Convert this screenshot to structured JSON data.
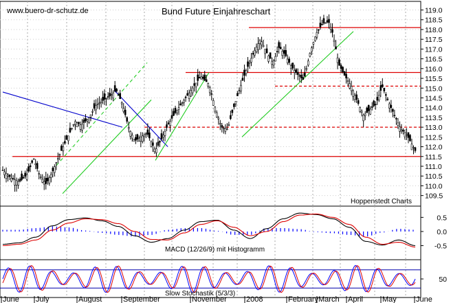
{
  "chart_data": [
    {
      "type": "candlestick",
      "title": "Bund Future Einjahreschart",
      "source_label": "www.buero-dr-schutz.de",
      "credit": "Hoppenstedt Charts",
      "ylim": [
        109.1,
        119.3
      ],
      "yticks": [
        119.0,
        118.5,
        118.0,
        117.5,
        117.0,
        116.5,
        116.0,
        115.5,
        115.0,
        114.5,
        114.0,
        113.5,
        113.0,
        112.5,
        112.0,
        111.5,
        111.0,
        110.5,
        110.0,
        109.5
      ],
      "yticklabels": [
        "119.0",
        "118.5",
        "118.0",
        "117.5",
        "117.0",
        "116.5",
        "116.0",
        "115.5",
        "115.0",
        "114.5",
        "114.0",
        "113.5",
        "113.0",
        "112.5",
        "112.0",
        "111.5",
        "111.0",
        "110.5",
        "110.0",
        "109.5"
      ],
      "price_path": [
        [
          0.0,
          110.8
        ],
        [
          0.02,
          110.4
        ],
        [
          0.04,
          110.2
        ],
        [
          0.06,
          110.6
        ],
        [
          0.075,
          111.4
        ],
        [
          0.09,
          110.5
        ],
        [
          0.105,
          110.1
        ],
        [
          0.12,
          110.7
        ],
        [
          0.14,
          111.7
        ],
        [
          0.16,
          112.6
        ],
        [
          0.175,
          113.3
        ],
        [
          0.19,
          113.1
        ],
        [
          0.21,
          113.5
        ],
        [
          0.225,
          114.1
        ],
        [
          0.245,
          114.4
        ],
        [
          0.26,
          114.6
        ],
        [
          0.275,
          114.9
        ],
        [
          0.29,
          114.2
        ],
        [
          0.305,
          113.0
        ],
        [
          0.32,
          112.3
        ],
        [
          0.335,
          112.5
        ],
        [
          0.35,
          112.7
        ],
        [
          0.37,
          111.8
        ],
        [
          0.385,
          112.4
        ],
        [
          0.4,
          113.1
        ],
        [
          0.42,
          113.8
        ],
        [
          0.44,
          114.4
        ],
        [
          0.46,
          115.0
        ],
        [
          0.48,
          115.6
        ],
        [
          0.5,
          115.2
        ],
        [
          0.515,
          114.0
        ],
        [
          0.53,
          113.0
        ],
        [
          0.545,
          112.9
        ],
        [
          0.56,
          114.0
        ],
        [
          0.575,
          115.0
        ],
        [
          0.59,
          115.9
        ],
        [
          0.61,
          116.9
        ],
        [
          0.625,
          117.5
        ],
        [
          0.64,
          116.8
        ],
        [
          0.655,
          116.3
        ],
        [
          0.67,
          117.1
        ],
        [
          0.685,
          116.7
        ],
        [
          0.7,
          116.1
        ],
        [
          0.715,
          115.7
        ],
        [
          0.73,
          115.4
        ],
        [
          0.745,
          116.8
        ],
        [
          0.76,
          117.8
        ],
        [
          0.775,
          118.3
        ],
        [
          0.79,
          118.4
        ],
        [
          0.8,
          117.8
        ],
        [
          0.815,
          116.2
        ],
        [
          0.83,
          115.6
        ],
        [
          0.845,
          115.1
        ],
        [
          0.86,
          114.3
        ],
        [
          0.875,
          113.6
        ],
        [
          0.89,
          113.9
        ],
        [
          0.905,
          114.2
        ],
        [
          0.92,
          115.1
        ],
        [
          0.935,
          114.3
        ],
        [
          0.95,
          113.6
        ],
        [
          0.965,
          112.9
        ],
        [
          0.98,
          112.6
        ],
        [
          1.0,
          111.8
        ]
      ],
      "horizontal_lines": [
        {
          "value": 118.1,
          "style": "solid",
          "color": "#dd0000"
        },
        {
          "value": 115.8,
          "style": "solid",
          "color": "#dd0000"
        },
        {
          "value": 115.1,
          "style": "dashed",
          "color": "#dd0000"
        },
        {
          "value": 113.0,
          "style": "dashed",
          "color": "#dd0000"
        },
        {
          "value": 111.5,
          "style": "solid",
          "color": "#dd0000"
        }
      ],
      "trend_lines": [
        {
          "from": [
            0.0,
            114.8
          ],
          "to": [
            0.29,
            113.0
          ],
          "color": "#0000cc",
          "style": "solid"
        },
        {
          "from": [
            0.145,
            109.6
          ],
          "to": [
            0.36,
            114.4
          ],
          "color": "#22cc22",
          "style": "solid"
        },
        {
          "from": [
            0.12,
            110.8
          ],
          "to": [
            0.35,
            116.3
          ],
          "color": "#22cc22",
          "style": "dashed"
        },
        {
          "from": [
            0.27,
            114.9
          ],
          "to": [
            0.4,
            112.0
          ],
          "color": "#0000cc",
          "style": "solid"
        },
        {
          "from": [
            0.37,
            111.3
          ],
          "to": [
            0.5,
            115.8
          ],
          "color": "#22cc22",
          "style": "solid"
        },
        {
          "from": [
            0.58,
            112.5
          ],
          "to": [
            0.85,
            117.9
          ],
          "color": "#22cc22",
          "style": "solid"
        }
      ],
      "colors": {
        "bullish": "#000000",
        "bearish": "#000000",
        "grid": "#999999"
      }
    },
    {
      "type": "line",
      "title": "MACD (12/26/9) mit Histogramm",
      "ylim": [
        -0.9,
        0.8
      ],
      "yticks": [
        0.5,
        0.0,
        -0.5
      ],
      "yticklabels": [
        "0.5",
        "0.0",
        "-0.5"
      ],
      "series": [
        {
          "values": [
            -0.45,
            -0.4,
            -0.2,
            0.2,
            0.42,
            0.48,
            0.38,
            0.18,
            -0.15,
            -0.38,
            -0.25,
            0.05,
            0.35,
            0.4,
            0.05,
            -0.25,
            0.1,
            0.45,
            0.65,
            0.6,
            0.45,
            0.15,
            -0.35,
            -0.48,
            -0.3,
            -0.5
          ],
          "color": "#000000"
        },
        {
          "values": [
            -0.5,
            -0.45,
            -0.3,
            0.05,
            0.3,
            0.45,
            0.42,
            0.28,
            0.0,
            -0.28,
            -0.3,
            -0.05,
            0.25,
            0.38,
            0.15,
            -0.15,
            0.0,
            0.35,
            0.58,
            0.62,
            0.5,
            0.25,
            -0.2,
            -0.45,
            -0.38,
            -0.55
          ],
          "color": "#dd0000"
        }
      ]
    },
    {
      "type": "line",
      "title": "Slow Stochastik (5/3/3)",
      "ylim": [
        0,
        100
      ],
      "yticks": [
        50
      ],
      "yticklabels": [
        "50"
      ],
      "reference_lines": [
        80,
        20
      ],
      "series": [
        {
          "color": "#0000ff"
        },
        {
          "color": "#dd0000"
        }
      ]
    }
  ],
  "x_axis": {
    "tick_labels": [
      "June",
      "July",
      "August",
      "September",
      "November",
      "2008",
      "February",
      "March",
      "April",
      "May",
      "June"
    ]
  }
}
